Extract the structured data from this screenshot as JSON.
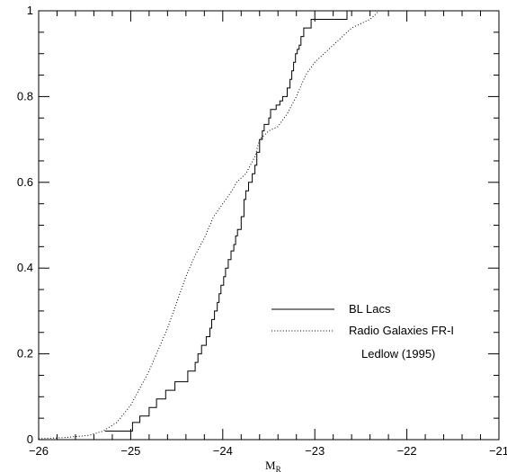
{
  "chart_data": {
    "type": "line",
    "step": true,
    "xlabel": "M",
    "xlabel_sub": "R",
    "ylabel": "",
    "xlim": [
      -26,
      -21
    ],
    "ylim": [
      0,
      1
    ],
    "x_ticks": [
      -26,
      -25,
      -24,
      -23,
      -22,
      -21
    ],
    "x_tick_labels": [
      "−26",
      "−25",
      "−24",
      "−23",
      "−22",
      "−21"
    ],
    "y_ticks": [
      0,
      0.2,
      0.4,
      0.6,
      0.8,
      1
    ],
    "y_tick_labels": [
      "0",
      "0.2",
      "0.4",
      "0.6",
      "0.8",
      "1"
    ],
    "grid": false,
    "legend_position": "center-right",
    "annotation": "Ledlow (1995)",
    "series": [
      {
        "name": "BL Lacs",
        "style": "solid",
        "x": [
          -25.28,
          -25.02,
          -24.98,
          -24.9,
          -24.8,
          -24.72,
          -24.62,
          -24.52,
          -24.38,
          -24.3,
          -24.27,
          -24.23,
          -24.18,
          -24.14,
          -24.12,
          -24.09,
          -24.06,
          -24.04,
          -24.02,
          -23.99,
          -23.97,
          -23.94,
          -23.91,
          -23.88,
          -23.86,
          -23.84,
          -23.8,
          -23.77,
          -23.75,
          -23.72,
          -23.68,
          -23.65,
          -23.63,
          -23.6,
          -23.57,
          -23.55,
          -23.5,
          -23.48,
          -23.42,
          -23.38,
          -23.35,
          -23.3,
          -23.27,
          -23.25,
          -23.23,
          -23.21,
          -23.19,
          -23.17,
          -23.15,
          -23.12,
          -23.08,
          -23.04,
          -22.99,
          -22.92,
          -22.65,
          -22.4
        ],
        "y": [
          0.02,
          0.02,
          0.04,
          0.055,
          0.075,
          0.095,
          0.115,
          0.135,
          0.16,
          0.18,
          0.2,
          0.22,
          0.24,
          0.26,
          0.28,
          0.3,
          0.32,
          0.34,
          0.36,
          0.38,
          0.4,
          0.42,
          0.44,
          0.455,
          0.475,
          0.49,
          0.52,
          0.56,
          0.58,
          0.6,
          0.62,
          0.64,
          0.67,
          0.7,
          0.72,
          0.735,
          0.75,
          0.77,
          0.78,
          0.79,
          0.8,
          0.82,
          0.84,
          0.86,
          0.88,
          0.9,
          0.91,
          0.92,
          0.94,
          0.96,
          0.96,
          0.98,
          0.98,
          0.98,
          1.0,
          1.0
        ]
      },
      {
        "name": "Radio Galaxies FR-I",
        "style": "dotted",
        "x": [
          -26.0,
          -25.7,
          -25.45,
          -25.3,
          -25.15,
          -25.0,
          -24.9,
          -24.8,
          -24.7,
          -24.6,
          -24.5,
          -24.4,
          -24.3,
          -24.2,
          -24.1,
          -24.0,
          -23.9,
          -23.85,
          -23.8,
          -23.75,
          -23.7,
          -23.65,
          -23.6,
          -23.5,
          -23.4,
          -23.3,
          -23.2,
          -23.1,
          -23.0,
          -22.9,
          -22.8,
          -22.6,
          -22.4,
          -22.3
        ],
        "y": [
          0.002,
          0.005,
          0.01,
          0.02,
          0.04,
          0.08,
          0.12,
          0.16,
          0.21,
          0.26,
          0.32,
          0.38,
          0.43,
          0.47,
          0.52,
          0.55,
          0.58,
          0.6,
          0.61,
          0.62,
          0.64,
          0.66,
          0.7,
          0.72,
          0.73,
          0.76,
          0.8,
          0.85,
          0.88,
          0.9,
          0.92,
          0.96,
          0.98,
          1.0
        ]
      }
    ]
  }
}
